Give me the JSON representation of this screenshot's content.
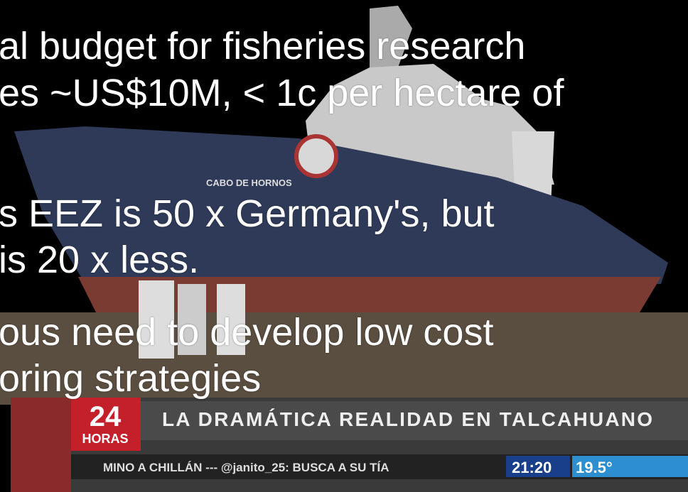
{
  "slide": {
    "bullets": [
      {
        "lines": [
          "al budget for fisheries research",
          "es ~US$10M, < 1c per hectare of"
        ]
      },
      {
        "lines": [
          "s EEZ is 50 x Germany's, but",
          "is 20 x less."
        ]
      },
      {
        "lines": [
          "ous need to develop low cost",
          "oring strategies"
        ]
      }
    ]
  },
  "photo": {
    "ship_name": "CABO DE HORNOS",
    "ticker": {
      "logo_number": "24",
      "logo_label": "HORAS",
      "headline": "LA DRAMÁTICA REALIDAD EN TALCAHUANO",
      "crawl": "MINO A CHILLÁN --- @janito_25: BUSCA A SU TÍA",
      "time": "21:20",
      "temperature": "19.5°"
    }
  }
}
